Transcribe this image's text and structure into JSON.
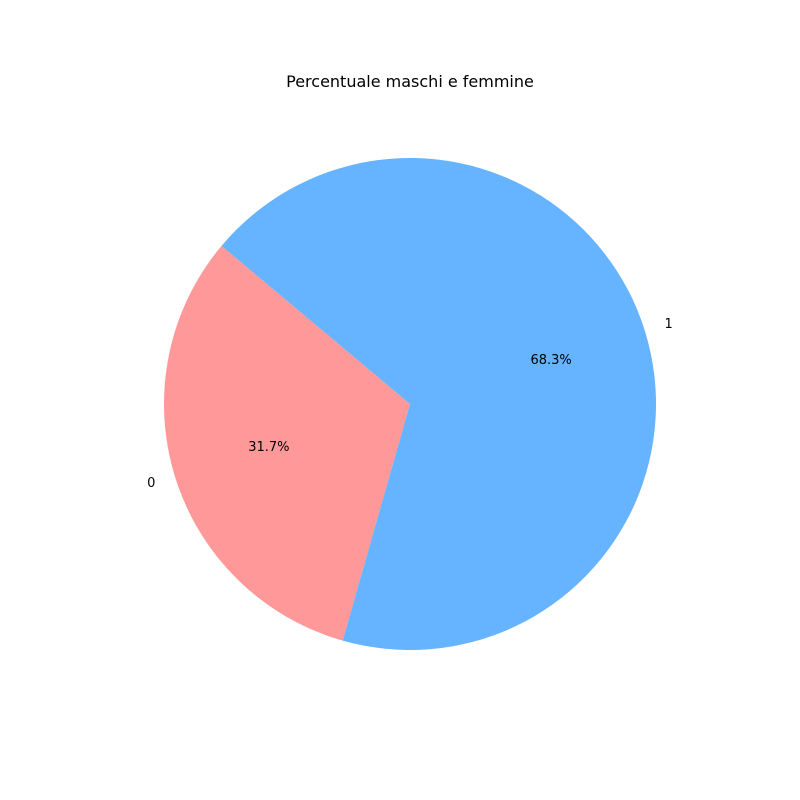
{
  "chart_data": {
    "type": "pie",
    "title": "Percentuale maschi e femmine",
    "slices": [
      {
        "label": "0",
        "value": 31.7,
        "pct_text": "31.7%",
        "color": "#ff9999"
      },
      {
        "label": "1",
        "value": 68.3,
        "pct_text": "68.3%",
        "color": "#66b3ff"
      }
    ],
    "start_angle_deg": 140,
    "direction": "counterclockwise"
  }
}
